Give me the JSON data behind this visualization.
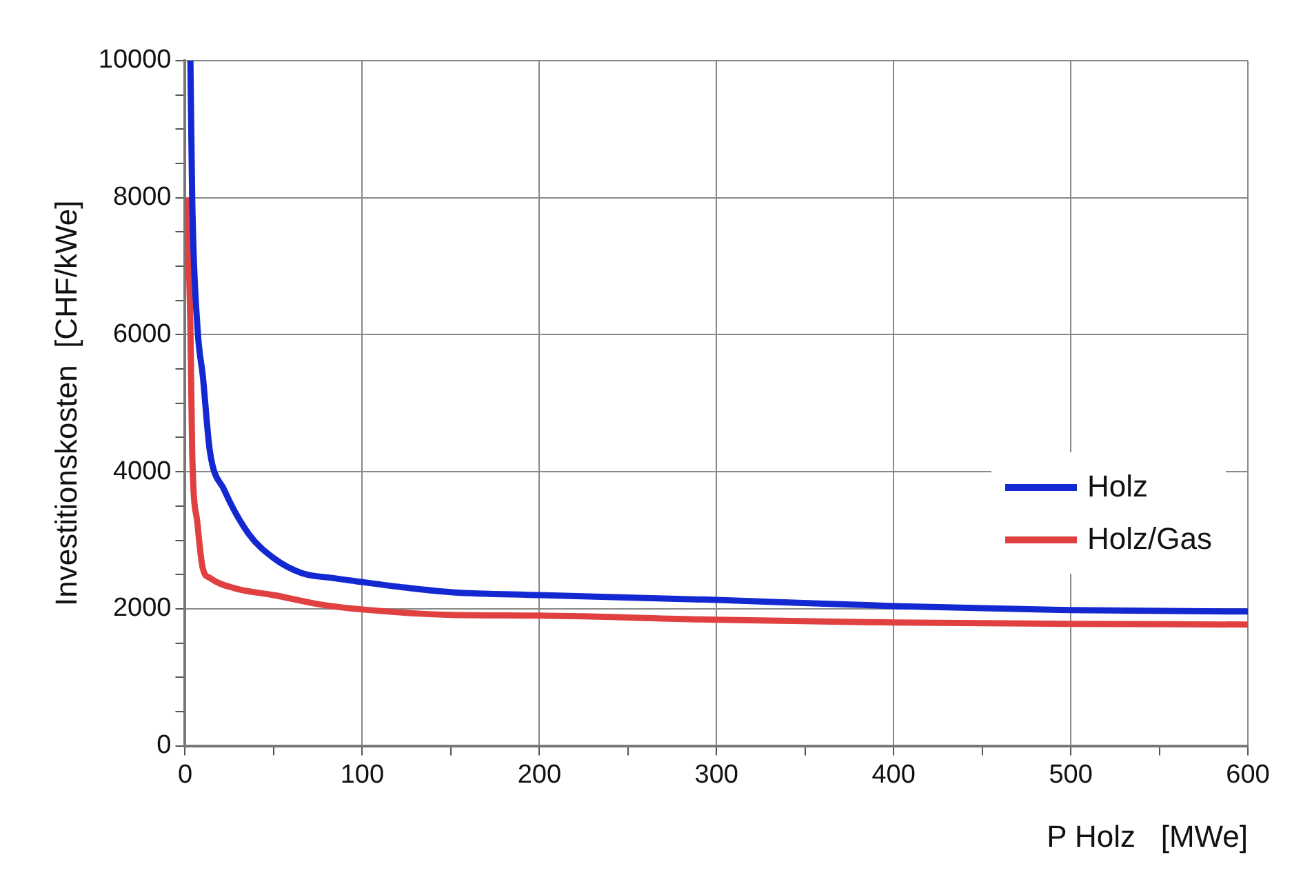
{
  "chart_data": {
    "type": "line",
    "xlabel": "P Holz   [MWe]",
    "ylabel": "Investitionskosten  [CHF/kWe]",
    "xlim": [
      0,
      600
    ],
    "ylim": [
      0,
      10000
    ],
    "xticks": [
      0,
      {
        "value": 50,
        "label": null
      },
      100,
      {
        "value": 150,
        "label": null
      },
      200,
      {
        "value": 250,
        "label": null
      },
      300,
      {
        "value": 350,
        "label": null
      },
      400,
      {
        "value": 450,
        "label": null
      },
      500,
      {
        "value": 550,
        "label": null
      },
      600
    ],
    "yticks": [
      0,
      {
        "value": 500,
        "label": null
      },
      {
        "value": 1000,
        "label": null
      },
      {
        "value": 1500,
        "label": null
      },
      2000,
      {
        "value": 2500,
        "label": null
      },
      {
        "value": 3000,
        "label": null
      },
      {
        "value": 3500,
        "label": null
      },
      4000,
      {
        "value": 4500,
        "label": null
      },
      {
        "value": 5000,
        "label": null
      },
      {
        "value": 5500,
        "label": null
      },
      6000,
      {
        "value": 6500,
        "label": null
      },
      {
        "value": 7000,
        "label": null
      },
      {
        "value": 7500,
        "label": null
      },
      8000,
      {
        "value": 8500,
        "label": null
      },
      {
        "value": 9000,
        "label": null
      },
      {
        "value": 9500,
        "label": null
      },
      10000
    ],
    "grid": true,
    "legend": "right",
    "marker": "none",
    "line_style": "solid",
    "series": [
      {
        "name": "Holz",
        "color": "#1428d2",
        "x": [
          3,
          4,
          7,
          10,
          14,
          22,
          36,
          50,
          66,
          83,
          100,
          124,
          151,
          200,
          300,
          400,
          500,
          600
        ],
        "values": [
          10000,
          8000,
          6100,
          5400,
          4300,
          3740,
          3090,
          2740,
          2520,
          2450,
          2390,
          2310,
          2240,
          2200,
          2130,
          2040,
          1980,
          1960
        ]
      },
      {
        "name": "Holz/Gas",
        "color": "#e04040",
        "x": [
          1,
          3,
          4,
          7,
          10,
          14,
          28,
          50,
          77,
          100,
          151,
          200,
          300,
          400,
          500,
          600
        ],
        "values": [
          8000,
          6100,
          4300,
          3240,
          2590,
          2450,
          2300,
          2200,
          2060,
          1990,
          1910,
          1900,
          1840,
          1800,
          1780,
          1770
        ]
      }
    ]
  }
}
